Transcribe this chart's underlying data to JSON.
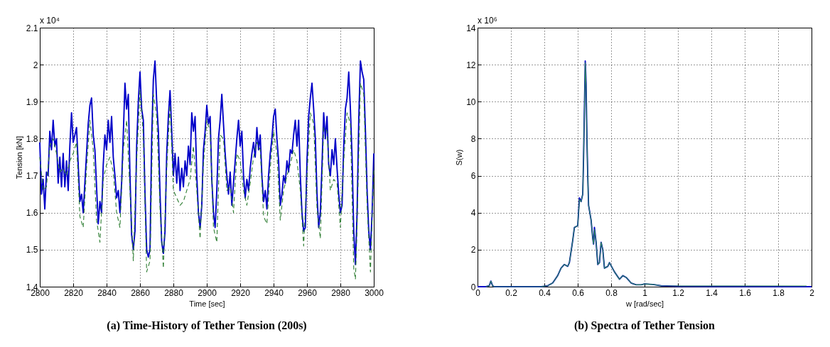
{
  "chart_data": [
    {
      "type": "line",
      "title": "(a)  Time-History of Tether Tension (200s)",
      "xlabel": "Time [sec]",
      "ylabel": "Tension [kN]",
      "annotations": [
        "x 10⁴"
      ],
      "xlim": [
        2800,
        3000
      ],
      "xticks": [
        2800,
        2820,
        2840,
        2860,
        2880,
        2900,
        2920,
        2940,
        2960,
        2980,
        3000
      ],
      "ylim": [
        1.4,
        2.1
      ],
      "yticks": [
        1.4,
        1.5,
        1.6,
        1.7,
        1.8,
        1.9,
        2,
        2.1
      ],
      "grid": true,
      "series": [
        {
          "color": "#0000c8",
          "line_style": "solid",
          "x": [
            2800,
            2801,
            2802,
            2803,
            2804,
            2805,
            2806,
            2807,
            2808,
            2809,
            2810,
            2811,
            2812,
            2813,
            2814,
            2815,
            2816,
            2817,
            2818,
            2819,
            2820,
            2822,
            2824,
            2825,
            2826,
            2827,
            2828,
            2829,
            2830,
            2831,
            2832,
            2833,
            2835,
            2836,
            2837,
            2838,
            2839,
            2840,
            2841,
            2842,
            2843,
            2844,
            2845,
            2846,
            2847,
            2848,
            2849,
            2850,
            2851,
            2852,
            2853,
            2854,
            2855,
            2856,
            2857,
            2858,
            2859,
            2860,
            2861,
            2862,
            2863,
            2864,
            2865,
            2866,
            2867,
            2868,
            2869,
            2870,
            2871,
            2872,
            2873,
            2874,
            2875,
            2876,
            2877,
            2878,
            2879,
            2880,
            2881,
            2882,
            2883,
            2884,
            2885,
            2886,
            2887,
            2888,
            2889,
            2890,
            2891,
            2892,
            2893,
            2894,
            2895,
            2896,
            2897,
            2898,
            2899,
            2900,
            2901,
            2902,
            2903,
            2904,
            2905,
            2906,
            2907,
            2908,
            2909,
            2910,
            2911,
            2912,
            2913,
            2914,
            2915,
            2916,
            2917,
            2918,
            2919,
            2920,
            2921,
            2922,
            2923,
            2924,
            2925,
            2926,
            2927,
            2928,
            2929,
            2930,
            2931,
            2932,
            2933,
            2934,
            2935,
            2936,
            2937,
            2938,
            2939,
            2940,
            2941,
            2942,
            2943,
            2944,
            2945,
            2946,
            2947,
            2948,
            2949,
            2950,
            2951,
            2952,
            2953,
            2954,
            2955,
            2956,
            2957,
            2958,
            2959,
            2960,
            2961,
            2962,
            2963,
            2964,
            2965,
            2966,
            2967,
            2968,
            2969,
            2970,
            2971,
            2972,
            2973,
            2974,
            2975,
            2976,
            2977,
            2978,
            2979,
            2980,
            2981,
            2982,
            2983,
            2984,
            2985,
            2986,
            2987,
            2988,
            2989,
            2990,
            2991,
            2992,
            2993,
            2994,
            2995,
            2996,
            2997,
            2998,
            2999,
            3000
          ],
          "values": [
            1.79,
            1.65,
            1.69,
            1.61,
            1.71,
            1.7,
            1.82,
            1.77,
            1.85,
            1.78,
            1.8,
            1.68,
            1.75,
            1.67,
            1.76,
            1.67,
            1.74,
            1.66,
            1.78,
            1.87,
            1.79,
            1.83,
            1.63,
            1.65,
            1.6,
            1.68,
            1.76,
            1.84,
            1.89,
            1.91,
            1.81,
            1.77,
            1.57,
            1.63,
            1.6,
            1.73,
            1.81,
            1.77,
            1.85,
            1.79,
            1.86,
            1.75,
            1.7,
            1.64,
            1.66,
            1.6,
            1.68,
            1.81,
            1.95,
            1.88,
            1.92,
            1.7,
            1.54,
            1.5,
            1.55,
            1.78,
            1.9,
            1.98,
            1.88,
            1.85,
            1.65,
            1.5,
            1.48,
            1.5,
            1.8,
            1.96,
            2.01,
            1.9,
            1.82,
            1.65,
            1.52,
            1.49,
            1.55,
            1.76,
            1.86,
            1.93,
            1.82,
            1.7,
            1.76,
            1.68,
            1.75,
            1.66,
            1.72,
            1.67,
            1.74,
            1.7,
            1.78,
            1.73,
            1.87,
            1.82,
            1.86,
            1.7,
            1.6,
            1.56,
            1.62,
            1.77,
            1.82,
            1.89,
            1.84,
            1.86,
            1.69,
            1.6,
            1.56,
            1.66,
            1.8,
            1.85,
            1.92,
            1.84,
            1.76,
            1.7,
            1.65,
            1.71,
            1.62,
            1.68,
            1.74,
            1.8,
            1.85,
            1.78,
            1.82,
            1.7,
            1.64,
            1.69,
            1.66,
            1.72,
            1.76,
            1.79,
            1.75,
            1.83,
            1.77,
            1.81,
            1.7,
            1.63,
            1.66,
            1.61,
            1.7,
            1.76,
            1.8,
            1.86,
            1.88,
            1.8,
            1.74,
            1.62,
            1.65,
            1.7,
            1.68,
            1.74,
            1.71,
            1.77,
            1.76,
            1.81,
            1.85,
            1.78,
            1.85,
            1.7,
            1.6,
            1.55,
            1.56,
            1.74,
            1.86,
            1.91,
            1.95,
            1.88,
            1.8,
            1.65,
            1.56,
            1.6,
            1.73,
            1.87,
            1.8,
            1.86,
            1.73,
            1.7,
            1.77,
            1.73,
            1.8,
            1.72,
            1.65,
            1.6,
            1.62,
            1.78,
            1.88,
            1.91,
            1.98,
            1.88,
            1.75,
            1.55,
            1.46,
            1.6,
            1.85,
            2.01,
            1.98,
            1.96,
            1.82,
            1.66,
            1.55,
            1.5,
            1.6,
            1.76
          ]
        },
        {
          "color": "#2e7d32",
          "line_style": "dashed",
          "x": [
            2800,
            2802,
            2804,
            2806,
            2808,
            2810,
            2812,
            2814,
            2816,
            2818,
            2820,
            2822,
            2824,
            2826,
            2828,
            2830,
            2832,
            2834,
            2836,
            2838,
            2840,
            2842,
            2844,
            2846,
            2848,
            2850,
            2852,
            2854,
            2856,
            2858,
            2860,
            2862,
            2864,
            2866,
            2868,
            2870,
            2872,
            2874,
            2876,
            2878,
            2880,
            2882,
            2884,
            2886,
            2888,
            2890,
            2892,
            2894,
            2896,
            2898,
            2900,
            2902,
            2904,
            2906,
            2908,
            2910,
            2912,
            2914,
            2916,
            2918,
            2920,
            2922,
            2924,
            2926,
            2928,
            2930,
            2932,
            2934,
            2936,
            2938,
            2940,
            2942,
            2944,
            2946,
            2948,
            2950,
            2952,
            2954,
            2956,
            2958,
            2960,
            2962,
            2964,
            2966,
            2968,
            2970,
            2972,
            2974,
            2976,
            2978,
            2980,
            2982,
            2984,
            2986,
            2988,
            2989,
            2990,
            2992,
            2994,
            2996,
            2998,
            3000
          ],
          "values": [
            1.75,
            1.66,
            1.67,
            1.78,
            1.8,
            1.76,
            1.71,
            1.72,
            1.7,
            1.74,
            1.76,
            1.79,
            1.59,
            1.56,
            1.72,
            1.85,
            1.77,
            1.58,
            1.52,
            1.69,
            1.73,
            1.75,
            1.71,
            1.6,
            1.56,
            1.77,
            1.85,
            1.66,
            1.47,
            1.74,
            1.93,
            1.81,
            1.44,
            1.47,
            1.92,
            1.86,
            1.61,
            1.45,
            1.72,
            1.89,
            1.66,
            1.64,
            1.62,
            1.63,
            1.66,
            1.69,
            1.78,
            1.66,
            1.53,
            1.73,
            1.85,
            1.82,
            1.56,
            1.52,
            1.81,
            1.8,
            1.66,
            1.67,
            1.6,
            1.76,
            1.74,
            1.66,
            1.62,
            1.68,
            1.75,
            1.79,
            1.77,
            1.59,
            1.57,
            1.72,
            1.82,
            1.76,
            1.58,
            1.66,
            1.7,
            1.73,
            1.77,
            1.74,
            1.66,
            1.51,
            1.7,
            1.87,
            1.84,
            1.61,
            1.53,
            1.83,
            1.82,
            1.66,
            1.69,
            1.68,
            1.56,
            1.74,
            1.87,
            1.84,
            1.45,
            1.42,
            1.56,
            1.95,
            1.92,
            1.62,
            1.44,
            1.72
          ]
        }
      ]
    },
    {
      "type": "line",
      "title": "(b)  Spectra of Tether Tension",
      "xlabel": "w [rad/sec]",
      "ylabel": "S(w)",
      "annotations": [
        "x 10⁶"
      ],
      "xlim": [
        0,
        2
      ],
      "xticks": [
        0,
        0.2,
        0.4,
        0.6,
        0.8,
        1,
        1.2,
        1.4,
        1.6,
        1.8,
        2
      ],
      "ylim": [
        0,
        14
      ],
      "yticks": [
        0,
        2,
        4,
        6,
        8,
        10,
        12,
        14
      ],
      "grid": true,
      "series": [
        {
          "color": "#0000c8",
          "line_style": "solid",
          "x": [
            0,
            0.05,
            0.07,
            0.08,
            0.09,
            0.1,
            0.38,
            0.42,
            0.45,
            0.48,
            0.5,
            0.52,
            0.54,
            0.55,
            0.57,
            0.58,
            0.6,
            0.61,
            0.62,
            0.63,
            0.635,
            0.645,
            0.65,
            0.655,
            0.66,
            0.665,
            0.68,
            0.69,
            0.695,
            0.7,
            0.71,
            0.72,
            0.73,
            0.74,
            0.75,
            0.76,
            0.78,
            0.79,
            0.82,
            0.85,
            0.87,
            0.89,
            0.92,
            0.95,
            0.98,
            1,
            1.05,
            1.1,
            1.2,
            1.5,
            2
          ],
          "values": [
            0,
            0,
            0.05,
            0.3,
            0.05,
            0,
            0,
            0.05,
            0.2,
            0.6,
            1,
            1.2,
            1.1,
            1.3,
            2.5,
            3.2,
            3.3,
            4.8,
            4.6,
            5,
            7,
            12.2,
            11,
            8,
            6,
            4.4,
            3.6,
            2.6,
            2.3,
            3.2,
            2.4,
            1.2,
            1.3,
            2.4,
            2,
            1,
            1.1,
            1.3,
            0.8,
            0.4,
            0.6,
            0.5,
            0.2,
            0.1,
            0.1,
            0.15,
            0.12,
            0.05,
            0.02,
            0.01,
            0
          ]
        },
        {
          "color": "#2e8b57",
          "line_style": "solid",
          "x": [
            0.05,
            0.07,
            0.08,
            0.09,
            0.1,
            0.38,
            0.42,
            0.45,
            0.48,
            0.5,
            0.52,
            0.54,
            0.55,
            0.57,
            0.58,
            0.6,
            0.61,
            0.62,
            0.63,
            0.635,
            0.645,
            0.65,
            0.655,
            0.66,
            0.665,
            0.68,
            0.69,
            0.695,
            0.7,
            0.71,
            0.72,
            0.73,
            0.74,
            0.75,
            0.76,
            0.78,
            0.79,
            0.82,
            0.85,
            0.87,
            0.89,
            0.92,
            0.95,
            0.98,
            1,
            1.05,
            1.1,
            1.2,
            1.5,
            1.97
          ],
          "values": [
            0,
            0.05,
            0.3,
            0.05,
            0,
            0,
            0.05,
            0.2,
            0.6,
            1,
            1.2,
            1.1,
            1.3,
            2.5,
            3.2,
            3.3,
            4.7,
            4.6,
            5,
            7,
            12.1,
            10.8,
            8,
            6,
            4.4,
            3.6,
            2.6,
            2.3,
            3.1,
            2.4,
            1.2,
            1.3,
            2.4,
            2,
            1,
            1.1,
            1.3,
            0.8,
            0.4,
            0.6,
            0.5,
            0.2,
            0.1,
            0.1,
            0.15,
            0.12,
            0.05,
            0.04,
            0.04,
            0.04
          ]
        }
      ]
    }
  ]
}
